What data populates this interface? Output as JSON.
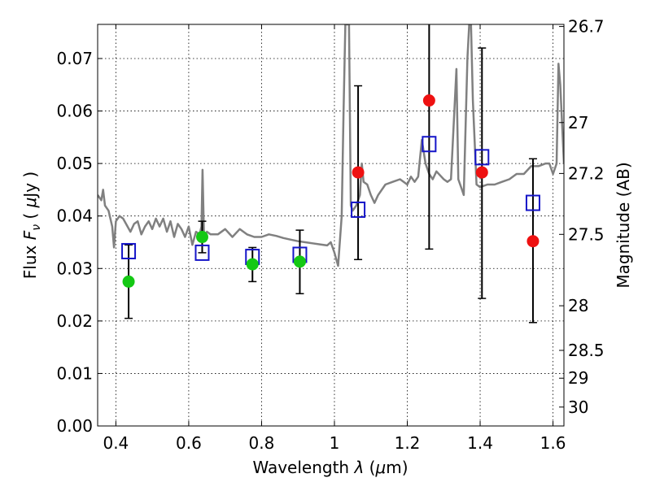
{
  "chart_data": {
    "type": "scatter",
    "xlabel": "Wavelength  λ (μm)",
    "ylabel": "Flux  Fν  ( μJy )",
    "ylabel_right": "Magnitude (AB)",
    "xlim": [
      0.35,
      1.63
    ],
    "ylim": [
      0.0,
      0.0765
    ],
    "grid": true,
    "x_ticks": [
      {
        "value": 0.4,
        "label": "0.4"
      },
      {
        "value": 0.6,
        "label": "0.6"
      },
      {
        "value": 0.8,
        "label": "0.8"
      },
      {
        "value": 1.0,
        "label": "1"
      },
      {
        "value": 1.2,
        "label": "1.2"
      },
      {
        "value": 1.4,
        "label": "1.4"
      },
      {
        "value": 1.6,
        "label": "1.6"
      }
    ],
    "y_ticks": [
      {
        "value": 0.0,
        "label": "0.00"
      },
      {
        "value": 0.01,
        "label": "0.01"
      },
      {
        "value": 0.02,
        "label": "0.02"
      },
      {
        "value": 0.03,
        "label": "0.03"
      },
      {
        "value": 0.04,
        "label": "0.04"
      },
      {
        "value": 0.05,
        "label": "0.05"
      },
      {
        "value": 0.06,
        "label": "0.06"
      },
      {
        "value": 0.07,
        "label": "0.07"
      }
    ],
    "y_right_ticks": [
      {
        "flux": 0.0761,
        "label": "26.7"
      },
      {
        "flux": 0.0578,
        "label": "27"
      },
      {
        "flux": 0.0481,
        "label": "27.2"
      },
      {
        "flux": 0.0365,
        "label": "27.5"
      },
      {
        "flux": 0.0229,
        "label": "28"
      },
      {
        "flux": 0.0144,
        "label": "28.5"
      },
      {
        "flux": 0.0091,
        "label": "29"
      },
      {
        "flux": 0.0036,
        "label": "30"
      }
    ],
    "series": [
      {
        "kind": "line",
        "color": "#808080",
        "points": [
          [
            0.35,
            0.044
          ],
          [
            0.36,
            0.043
          ],
          [
            0.365,
            0.045
          ],
          [
            0.37,
            0.042
          ],
          [
            0.38,
            0.041
          ],
          [
            0.39,
            0.038
          ],
          [
            0.395,
            0.034
          ],
          [
            0.4,
            0.039
          ],
          [
            0.41,
            0.04
          ],
          [
            0.42,
            0.0395
          ],
          [
            0.44,
            0.037
          ],
          [
            0.45,
            0.0385
          ],
          [
            0.46,
            0.039
          ],
          [
            0.47,
            0.0365
          ],
          [
            0.48,
            0.038
          ],
          [
            0.49,
            0.039
          ],
          [
            0.5,
            0.0375
          ],
          [
            0.51,
            0.0395
          ],
          [
            0.52,
            0.038
          ],
          [
            0.53,
            0.0395
          ],
          [
            0.54,
            0.037
          ],
          [
            0.55,
            0.039
          ],
          [
            0.56,
            0.036
          ],
          [
            0.57,
            0.0385
          ],
          [
            0.58,
            0.0375
          ],
          [
            0.59,
            0.036
          ],
          [
            0.6,
            0.038
          ],
          [
            0.61,
            0.0345
          ],
          [
            0.62,
            0.037
          ],
          [
            0.63,
            0.0365
          ],
          [
            0.635,
            0.038
          ],
          [
            0.638,
            0.0488
          ],
          [
            0.642,
            0.036
          ],
          [
            0.65,
            0.037
          ],
          [
            0.66,
            0.0365
          ],
          [
            0.68,
            0.0365
          ],
          [
            0.7,
            0.0375
          ],
          [
            0.72,
            0.036
          ],
          [
            0.74,
            0.0375
          ],
          [
            0.76,
            0.0365
          ],
          [
            0.78,
            0.036
          ],
          [
            0.8,
            0.036
          ],
          [
            0.82,
            0.0365
          ],
          [
            0.84,
            0.0362
          ],
          [
            0.86,
            0.0358
          ],
          [
            0.88,
            0.0355
          ],
          [
            0.9,
            0.0352
          ],
          [
            0.92,
            0.035
          ],
          [
            0.94,
            0.0348
          ],
          [
            0.96,
            0.0346
          ],
          [
            0.98,
            0.0344
          ],
          [
            0.99,
            0.035
          ],
          [
            1.0,
            0.033
          ],
          [
            1.01,
            0.0305
          ],
          [
            1.02,
            0.04
          ],
          [
            1.025,
            0.06
          ],
          [
            1.03,
            0.0765
          ],
          [
            1.04,
            0.0765
          ],
          [
            1.045,
            0.042
          ],
          [
            1.05,
            0.041
          ],
          [
            1.06,
            0.042
          ],
          [
            1.07,
            0.044
          ],
          [
            1.075,
            0.05
          ],
          [
            1.08,
            0.0465
          ],
          [
            1.09,
            0.046
          ],
          [
            1.1,
            0.044
          ],
          [
            1.11,
            0.0425
          ],
          [
            1.12,
            0.044
          ],
          [
            1.14,
            0.046
          ],
          [
            1.16,
            0.0465
          ],
          [
            1.18,
            0.047
          ],
          [
            1.2,
            0.046
          ],
          [
            1.21,
            0.0475
          ],
          [
            1.22,
            0.0465
          ],
          [
            1.23,
            0.0475
          ],
          [
            1.24,
            0.0545
          ],
          [
            1.25,
            0.05
          ],
          [
            1.26,
            0.048
          ],
          [
            1.27,
            0.047
          ],
          [
            1.28,
            0.0485
          ],
          [
            1.3,
            0.047
          ],
          [
            1.31,
            0.0465
          ],
          [
            1.32,
            0.047
          ],
          [
            1.335,
            0.068
          ],
          [
            1.34,
            0.047
          ],
          [
            1.35,
            0.045
          ],
          [
            1.355,
            0.044
          ],
          [
            1.365,
            0.07
          ],
          [
            1.37,
            0.0765
          ],
          [
            1.375,
            0.0765
          ],
          [
            1.38,
            0.062
          ],
          [
            1.39,
            0.046
          ],
          [
            1.4,
            0.0455
          ],
          [
            1.42,
            0.046
          ],
          [
            1.44,
            0.046
          ],
          [
            1.46,
            0.0465
          ],
          [
            1.48,
            0.047
          ],
          [
            1.5,
            0.048
          ],
          [
            1.52,
            0.048
          ],
          [
            1.54,
            0.0495
          ],
          [
            1.56,
            0.0495
          ],
          [
            1.58,
            0.05
          ],
          [
            1.59,
            0.05
          ],
          [
            1.6,
            0.048
          ],
          [
            1.61,
            0.05
          ],
          [
            1.615,
            0.069
          ],
          [
            1.62,
            0.065
          ],
          [
            1.63,
            0.05
          ]
        ]
      },
      {
        "kind": "squares",
        "color": "#1515c8",
        "points": [
          [
            0.435,
            0.0333
          ],
          [
            0.637,
            0.033
          ],
          [
            0.775,
            0.0322
          ],
          [
            0.905,
            0.0326
          ],
          [
            1.065,
            0.0412
          ],
          [
            1.26,
            0.0537
          ],
          [
            1.405,
            0.0512
          ],
          [
            1.545,
            0.0425
          ]
        ]
      },
      {
        "kind": "points",
        "color": "#14c814",
        "points": [
          [
            0.435,
            0.0275
          ],
          [
            0.637,
            0.036
          ],
          [
            0.775,
            0.0308
          ],
          [
            0.905,
            0.0313
          ]
        ]
      },
      {
        "kind": "points",
        "color": "#ee1111",
        "points": [
          [
            1.065,
            0.0483
          ],
          [
            1.26,
            0.062
          ],
          [
            1.405,
            0.0483
          ],
          [
            1.545,
            0.0352
          ]
        ]
      }
    ],
    "errorbars": [
      {
        "x": 0.435,
        "low": 0.0205,
        "high": 0.0345
      },
      {
        "x": 0.637,
        "low": 0.033,
        "high": 0.039
      },
      {
        "x": 0.775,
        "low": 0.0275,
        "high": 0.034
      },
      {
        "x": 0.905,
        "low": 0.0252,
        "high": 0.0373
      },
      {
        "x": 1.065,
        "low": 0.0317,
        "high": 0.0648
      },
      {
        "x": 1.26,
        "low": 0.0337,
        "high": 0.0765
      },
      {
        "x": 1.405,
        "low": 0.0243,
        "high": 0.072
      },
      {
        "x": 1.545,
        "low": 0.0197,
        "high": 0.0509
      }
    ]
  }
}
